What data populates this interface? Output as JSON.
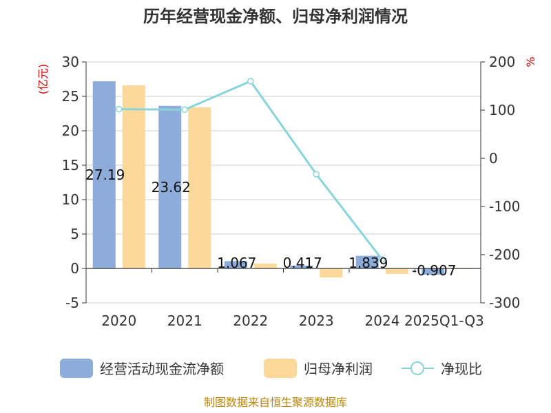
{
  "chart_data": {
    "type": "bar",
    "title": "历年经营现金净额、归母净利润情况",
    "categories": [
      "2020",
      "2021",
      "2022",
      "2023",
      "2024",
      "2025Q1-Q3"
    ],
    "series": [
      {
        "name": "经营活动现金流净额",
        "type": "bar",
        "axis": "left",
        "color": "#8eacd9",
        "values": [
          27.19,
          23.62,
          1.067,
          0.417,
          1.839,
          -0.907
        ],
        "labels": [
          "27.19",
          "23.62",
          "1.067",
          "0.417",
          "1.839",
          "-0.907"
        ]
      },
      {
        "name": "归母净利润",
        "type": "bar",
        "axis": "left",
        "color": "#fdd89b",
        "values": [
          26.6,
          23.4,
          0.7,
          -1.3,
          -0.8,
          -0.1
        ]
      },
      {
        "name": "净现比",
        "type": "line",
        "axis": "right",
        "color": "#88d4d8",
        "values": [
          102,
          101,
          160,
          -33,
          -210,
          null
        ]
      }
    ],
    "yleft": {
      "label": "(亿元)",
      "min": -5,
      "max": 30,
      "ticks": [
        -5,
        0,
        5,
        10,
        15,
        20,
        25,
        30
      ]
    },
    "yright": {
      "label": "%",
      "min": -300,
      "max": 200,
      "ticks": [
        -300,
        -200,
        -100,
        0,
        100,
        200
      ]
    },
    "grid": true,
    "legend": "bottom"
  },
  "source": "制图数据来自恒生聚源数据库"
}
